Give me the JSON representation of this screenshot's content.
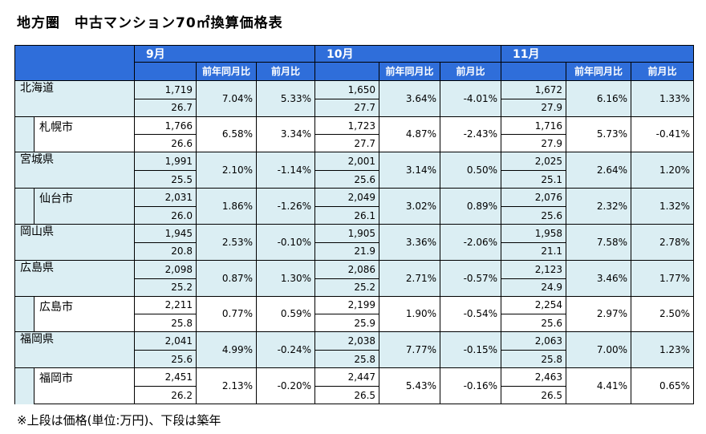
{
  "title": "地方圏　中古マンション70㎡換算価格表",
  "note": "※上段は価格(単位:万円)、下段は築年",
  "header": {
    "months": [
      "9月",
      "10月",
      "11月"
    ],
    "yoy_label": "前年同月比",
    "mom_label": "前月比"
  },
  "rows": [
    {
      "name": "北海道",
      "kind": "pref",
      "tint": true,
      "cells": [
        {
          "price": "1,719",
          "age": "26.7",
          "yoy": "7.04%",
          "mom": "5.33%"
        },
        {
          "price": "1,650",
          "age": "27.7",
          "yoy": "3.64%",
          "mom": "-4.01%"
        },
        {
          "price": "1,672",
          "age": "27.9",
          "yoy": "6.16%",
          "mom": "1.33%"
        }
      ]
    },
    {
      "name": "札幌市",
      "kind": "city",
      "tint": false,
      "cells": [
        {
          "price": "1,766",
          "age": "26.6",
          "yoy": "6.58%",
          "mom": "3.34%"
        },
        {
          "price": "1,723",
          "age": "27.7",
          "yoy": "4.87%",
          "mom": "-2.43%"
        },
        {
          "price": "1,716",
          "age": "27.9",
          "yoy": "5.73%",
          "mom": "-0.41%"
        }
      ]
    },
    {
      "name": "宮城県",
      "kind": "pref",
      "tint": true,
      "cells": [
        {
          "price": "1,991",
          "age": "25.5",
          "yoy": "2.10%",
          "mom": "-1.14%"
        },
        {
          "price": "2,001",
          "age": "25.6",
          "yoy": "3.14%",
          "mom": "0.50%"
        },
        {
          "price": "2,025",
          "age": "25.1",
          "yoy": "2.64%",
          "mom": "1.20%"
        }
      ]
    },
    {
      "name": "仙台市",
      "kind": "city",
      "tint": true,
      "cells": [
        {
          "price": "2,031",
          "age": "26.0",
          "yoy": "1.86%",
          "mom": "-1.26%"
        },
        {
          "price": "2,049",
          "age": "26.1",
          "yoy": "3.02%",
          "mom": "0.89%"
        },
        {
          "price": "2,076",
          "age": "25.6",
          "yoy": "2.32%",
          "mom": "1.32%"
        }
      ]
    },
    {
      "name": "岡山県",
      "kind": "pref-single",
      "tint": true,
      "cells": [
        {
          "price": "1,945",
          "age": "20.8",
          "yoy": "2.53%",
          "mom": "-0.10%"
        },
        {
          "price": "1,905",
          "age": "21.9",
          "yoy": "3.36%",
          "mom": "-2.06%"
        },
        {
          "price": "1,958",
          "age": "21.1",
          "yoy": "7.58%",
          "mom": "2.78%"
        }
      ]
    },
    {
      "name": "広島県",
      "kind": "pref",
      "tint": true,
      "cells": [
        {
          "price": "2,098",
          "age": "25.2",
          "yoy": "0.87%",
          "mom": "1.30%"
        },
        {
          "price": "2,086",
          "age": "25.2",
          "yoy": "2.71%",
          "mom": "-0.57%"
        },
        {
          "price": "2,123",
          "age": "24.9",
          "yoy": "3.46%",
          "mom": "1.77%"
        }
      ]
    },
    {
      "name": "広島市",
      "kind": "city",
      "tint": false,
      "cells": [
        {
          "price": "2,211",
          "age": "25.8",
          "yoy": "0.77%",
          "mom": "0.59%"
        },
        {
          "price": "2,199",
          "age": "25.9",
          "yoy": "1.90%",
          "mom": "-0.54%"
        },
        {
          "price": "2,254",
          "age": "25.6",
          "yoy": "2.97%",
          "mom": "2.50%"
        }
      ]
    },
    {
      "name": "福岡県",
      "kind": "pref",
      "tint": true,
      "cells": [
        {
          "price": "2,041",
          "age": "25.6",
          "yoy": "4.99%",
          "mom": "-0.24%"
        },
        {
          "price": "2,038",
          "age": "25.8",
          "yoy": "7.77%",
          "mom": "-0.15%"
        },
        {
          "price": "2,063",
          "age": "25.8",
          "yoy": "7.00%",
          "mom": "1.23%"
        }
      ]
    },
    {
      "name": "福岡市",
      "kind": "city",
      "tint": false,
      "cells": [
        {
          "price": "2,451",
          "age": "26.2",
          "yoy": "2.13%",
          "mom": "-0.20%"
        },
        {
          "price": "2,447",
          "age": "26.5",
          "yoy": "5.43%",
          "mom": "-0.16%"
        },
        {
          "price": "2,463",
          "age": "26.5",
          "yoy": "4.41%",
          "mom": "0.65%"
        }
      ]
    }
  ],
  "colors": {
    "header_blue": "#2f6eda",
    "tint": "#dbeef3"
  }
}
